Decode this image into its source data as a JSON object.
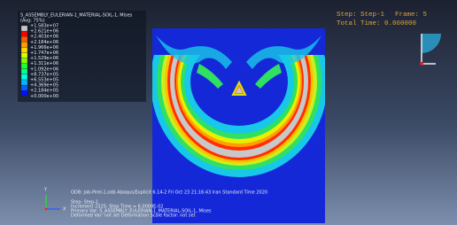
{
  "legend": {
    "title": "S_ASSEMBLY_EULERIAN-1_MATERIAL-SOIL-1, Mises",
    "subtitle": "(Avg: 75%)",
    "values": [
      "+1.583e+07",
      "+2.621e+06",
      "+2.403e+06",
      "+2.184e+06",
      "+1.966e+06",
      "+1.747e+06",
      "+1.529e+06",
      "+1.311e+06",
      "+1.092e+06",
      "+8.737e+05",
      "+6.553e+05",
      "+4.369e+05",
      "+2.184e+05",
      "+0.000e+00"
    ]
  },
  "status": {
    "step": "Step: Step-1",
    "frame": "Frame: 5",
    "total_time": "Total Time: 0.060000"
  },
  "info": {
    "odb": "ODB: Job-Pirel-1.odb   Abaqus/Explicit 6.14-2   Fri Oct 23 21:16:43 Iran Standard Time 2020",
    "step": "Step: Step-1",
    "increment": "Increment   2325: Step Time =   6.0000E-02",
    "primary": "Primary Var: S_ASSEMBLY_EULERIAN-1_MATERIAL-SOIL-1, Mises",
    "deformed": "Deformed Var: not set   Deformation Scale Factor: not set"
  },
  "axes": {
    "x": "X",
    "y": "Y"
  }
}
